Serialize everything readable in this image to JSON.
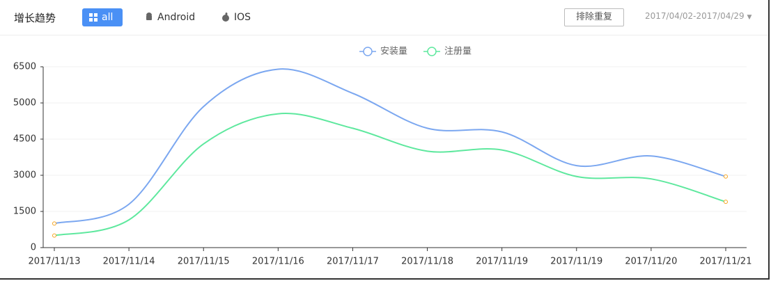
{
  "header": {
    "title": "增长趋势",
    "tabs": [
      "all",
      "Android",
      "IOS"
    ],
    "button": "排除重复",
    "date_range": "2017/04/02-2017/04/29"
  },
  "chart_data": {
    "type": "line",
    "categories": [
      "2017/11/13",
      "2017/11/14",
      "2017/11/15",
      "2017/11/16",
      "2017/11/17",
      "2017/11/18",
      "2017/11/19",
      "2017/11/19",
      "2017/11/20",
      "2017/11/21"
    ],
    "series": [
      {
        "name": "安装量",
        "color": "#7ba7f0",
        "values": [
          1000,
          1800,
          4950,
          6400,
          5400,
          4650,
          4600,
          3400,
          3800,
          2950
        ]
      },
      {
        "name": "注册量",
        "color": "#5ee89e",
        "values": [
          500,
          1150,
          4300,
          4850,
          4650,
          4000,
          4050,
          2950,
          2850,
          1900
        ]
      }
    ],
    "ylim": [
      0,
      6500
    ],
    "yticks": [
      0,
      1500,
      3000,
      4500,
      5000,
      6500
    ],
    "grid": true,
    "legend": "top"
  }
}
